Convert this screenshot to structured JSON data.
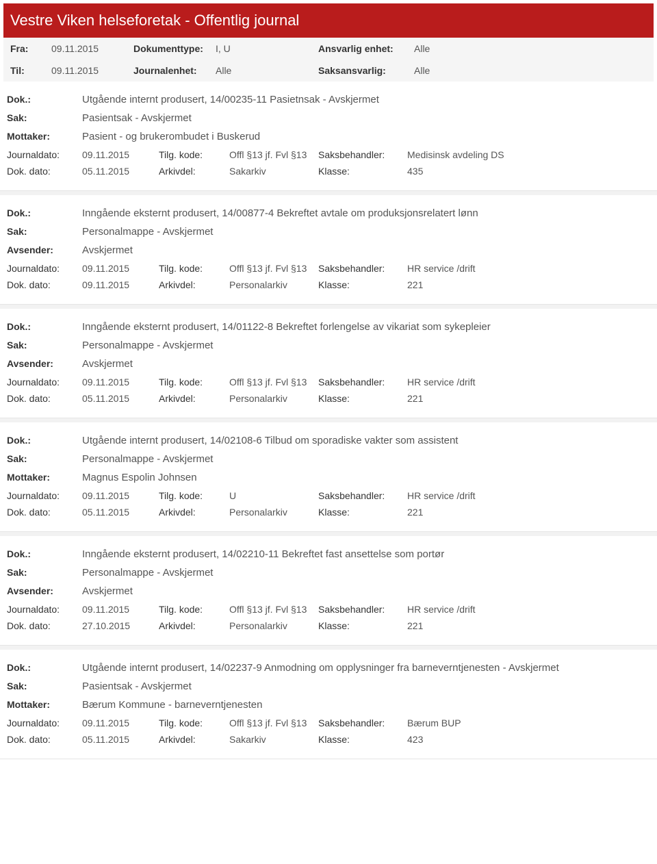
{
  "header": {
    "title": "Vestre Viken helseforetak - Offentlig journal"
  },
  "meta": {
    "fra_label": "Fra:",
    "fra_value": "09.11.2015",
    "doktype_label": "Dokumenttype:",
    "doktype_value": "I, U",
    "ansvarlig_label": "Ansvarlig enhet:",
    "ansvarlig_value": "Alle",
    "til_label": "Til:",
    "til_value": "09.11.2015",
    "journalenhet_label": "Journalenhet:",
    "journalenhet_value": "Alle",
    "saksansvarlig_label": "Saksansvarlig:",
    "saksansvarlig_value": "Alle"
  },
  "labels": {
    "dok": "Dok.:",
    "sak": "Sak:",
    "mottaker": "Mottaker:",
    "avsender": "Avsender:",
    "journaldato": "Journaldato:",
    "dokdato": "Dok. dato:",
    "tilgkode": "Tilg. kode:",
    "arkivdel": "Arkivdel:",
    "saksbehandler": "Saksbehandler:",
    "klasse": "Klasse:"
  },
  "entries": [
    {
      "dok": "Utgående internt produsert, 14/00235-11 Pasietnsak - Avskjermet",
      "sak": "Pasientsak - Avskjermet",
      "party_label": "Mottaker:",
      "party": "Pasient - og brukerombudet i Buskerud",
      "journaldato": "09.11.2015",
      "tilgkode": "Offl §13 jf. Fvl §13",
      "saksbehandler": "Medisinsk avdeling DS",
      "dokdato": "05.11.2015",
      "arkivdel": "Sakarkiv",
      "klasse": "435"
    },
    {
      "dok": "Inngående eksternt produsert, 14/00877-4 Bekreftet avtale om produksjonsrelatert lønn",
      "sak": "Personalmappe - Avskjermet",
      "party_label": "Avsender:",
      "party": "Avskjermet",
      "journaldato": "09.11.2015",
      "tilgkode": "Offl §13 jf. Fvl §13",
      "saksbehandler": "HR service /drift",
      "dokdato": "09.11.2015",
      "arkivdel": "Personalarkiv",
      "klasse": "221"
    },
    {
      "dok": "Inngående eksternt produsert, 14/01122-8 Bekreftet forlengelse av vikariat som sykepleier",
      "sak": "Personalmappe - Avskjermet",
      "party_label": "Avsender:",
      "party": "Avskjermet",
      "journaldato": "09.11.2015",
      "tilgkode": "Offl §13 jf. Fvl §13",
      "saksbehandler": "HR service /drift",
      "dokdato": "05.11.2015",
      "arkivdel": "Personalarkiv",
      "klasse": "221"
    },
    {
      "dok": "Utgående internt produsert, 14/02108-6 Tilbud om sporadiske vakter som assistent",
      "sak": "Personalmappe - Avskjermet",
      "party_label": "Mottaker:",
      "party": "Magnus Espolin Johnsen",
      "journaldato": "09.11.2015",
      "tilgkode": "U",
      "saksbehandler": "HR service /drift",
      "dokdato": "05.11.2015",
      "arkivdel": "Personalarkiv",
      "klasse": "221"
    },
    {
      "dok": "Inngående eksternt produsert, 14/02210-11 Bekreftet fast ansettelse som portør",
      "sak": "Personalmappe - Avskjermet",
      "party_label": "Avsender:",
      "party": "Avskjermet",
      "journaldato": "09.11.2015",
      "tilgkode": "Offl §13 jf. Fvl §13",
      "saksbehandler": "HR service /drift",
      "dokdato": "27.10.2015",
      "arkivdel": "Personalarkiv",
      "klasse": "221"
    },
    {
      "dok": "Utgående internt produsert, 14/02237-9 Anmodning om opplysninger fra barneverntjenesten - Avskjermet",
      "sak": "Pasientsak - Avskjermet",
      "party_label": "Mottaker:",
      "party": "Bærum Kommune - barneverntjenesten",
      "journaldato": "09.11.2015",
      "tilgkode": "Offl §13 jf. Fvl §13",
      "saksbehandler": "Bærum BUP",
      "dokdato": "05.11.2015",
      "arkivdel": "Sakarkiv",
      "klasse": "423"
    }
  ]
}
